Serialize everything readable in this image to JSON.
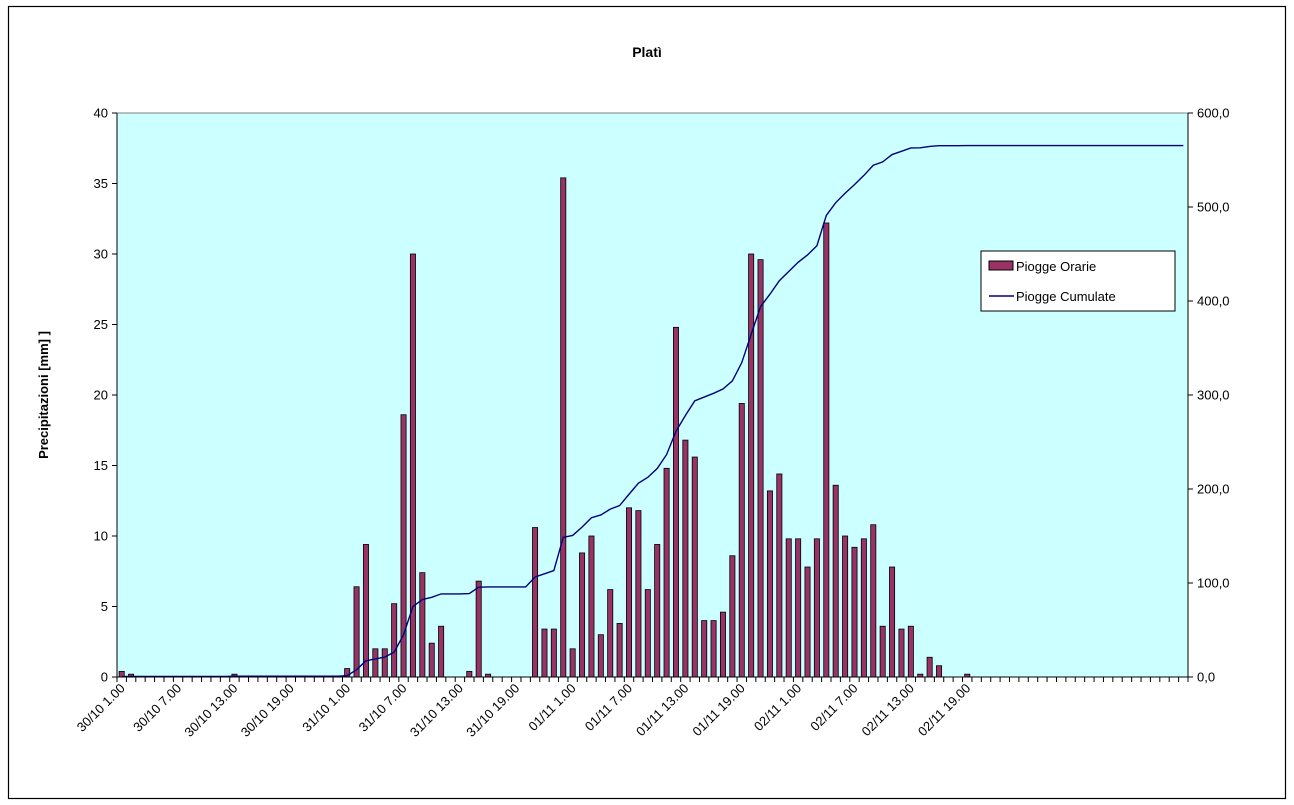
{
  "chart_data": {
    "type": "bar",
    "title": "Platì",
    "ylabel": "Precipitazioni [mm]  ]",
    "ylabel_right": "",
    "xlabel": "",
    "ylim": [
      0,
      40
    ],
    "yticks": [
      "0",
      "5",
      "10",
      "15",
      "20",
      "25",
      "30",
      "35",
      "40"
    ],
    "ylim_right": [
      0,
      600
    ],
    "yticks_right": [
      "0,0",
      "100,0",
      "200,0",
      "300,0",
      "400,0",
      "500,0",
      "600,0"
    ],
    "x_tick_labels": [
      "30/10 1.00",
      "30/10 7.00",
      "30/10 13.00",
      "30/10 19.00",
      "31/10 1.00",
      "31/10 7.00",
      "31/10 13.00",
      "31/10 19.00",
      "01/11 1.00",
      "01/11 7.00",
      "01/11 13.00",
      "01/11 19.00",
      "02/11 1.00",
      "02/11 7.00",
      "02/11 13.00",
      "02/11 19.00"
    ],
    "x_tick_step_hours": 6,
    "grid": false,
    "legend_position": "right",
    "colors": {
      "plot_background": "#ccffff",
      "bar": "#993366",
      "line": "#000080"
    },
    "series": [
      {
        "name": "Piogge Orarie",
        "type": "bar",
        "axis": "left",
        "values": [
          0.4,
          0.2,
          0,
          0,
          0,
          0,
          0,
          0,
          0,
          0,
          0,
          0,
          0.2,
          0,
          0,
          0,
          0,
          0,
          0,
          0,
          0,
          0,
          0,
          0,
          0.6,
          6.4,
          9.4,
          2,
          2,
          5.2,
          18.6,
          30,
          7.4,
          2.4,
          3.6,
          0,
          0,
          0.4,
          6.8,
          0.2,
          0,
          0,
          0,
          0,
          10.6,
          3.4,
          3.4,
          35.4,
          2,
          8.8,
          10,
          3,
          6.2,
          3.8,
          12,
          11.8,
          6.2,
          9.4,
          14.8,
          24.8,
          16.8,
          15.6,
          4,
          4,
          4.6,
          8.6,
          19.4,
          30,
          29.6,
          13.2,
          14.4,
          9.8,
          9.8,
          7.8,
          9.8,
          32.2,
          13.6,
          10,
          9.2,
          9.8,
          10.8,
          3.6,
          7.8,
          3.4,
          3.6,
          0.2,
          1.4,
          0.8,
          0,
          0,
          0.2,
          0,
          0,
          0,
          0,
          0,
          0,
          0,
          0,
          0,
          0,
          0,
          0,
          0,
          0,
          0,
          0,
          0,
          0,
          0,
          0,
          0,
          0,
          0
        ]
      },
      {
        "name": "Piogge Cumulate",
        "type": "line",
        "axis": "right"
      }
    ]
  }
}
